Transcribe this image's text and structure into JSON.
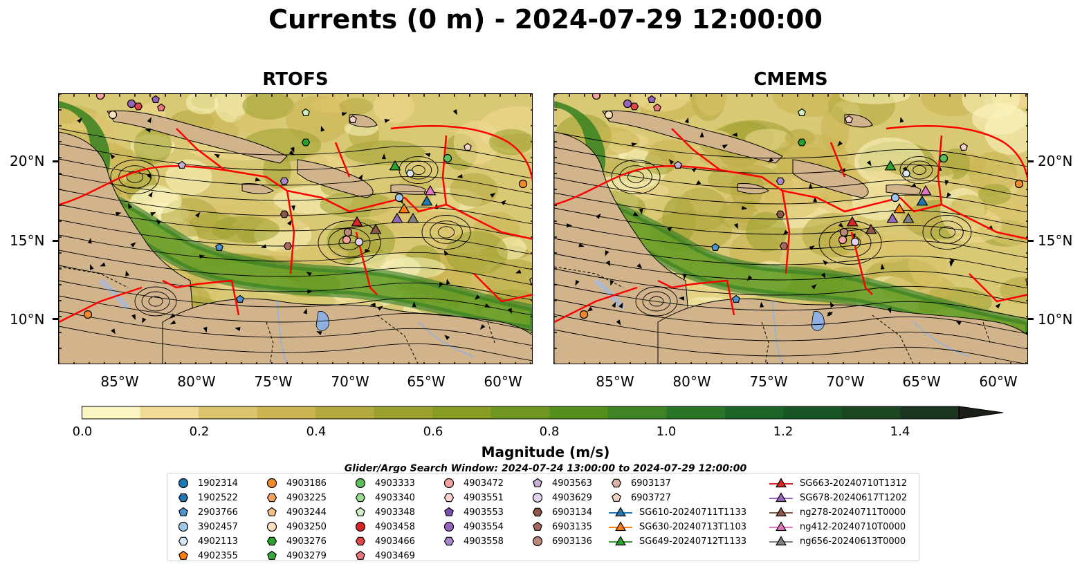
{
  "title": "Currents (0 m) - 2024-07-29 12:00:00",
  "panels": [
    {
      "title": "RTOFS"
    },
    {
      "title": "CMEMS"
    }
  ],
  "axes": {
    "y_ticks": [
      "20°N",
      "15°N",
      "10°N"
    ],
    "x_ticks": [
      "85°W",
      "80°W",
      "75°W",
      "70°W",
      "65°W",
      "60°W"
    ]
  },
  "colorbar": {
    "label": "Magnitude (m/s)",
    "ticks": [
      "0.0",
      "0.2",
      "0.4",
      "0.6",
      "0.8",
      "1.0",
      "1.2",
      "1.4"
    ],
    "colors": [
      "#fbf5c1",
      "#efdb94",
      "#dcc46e",
      "#cbb552",
      "#b3a83e",
      "#9da02f",
      "#869c23",
      "#6f9620",
      "#55901f",
      "#3f8424",
      "#2a7528",
      "#1d6428",
      "#175624",
      "#1a4621",
      "#1c3520",
      "#1a261b"
    ]
  },
  "map_colors": {
    "land": "#d2b48c",
    "water_features": "#8fb0e0",
    "boundaries": "#ff0000",
    "streamlines": "#000000"
  },
  "search_window": "Glider/Argo Search Window: 2024-07-24 13:00:00 to 2024-07-29 12:00:00",
  "legend": {
    "columns": [
      [
        {
          "label": "1902314",
          "marker": "circle",
          "color": "#1f77b4"
        },
        {
          "label": "1902522",
          "marker": "hexagon",
          "color": "#1f77b4"
        },
        {
          "label": "2903766",
          "marker": "pentagon",
          "color": "#4e95cf"
        },
        {
          "label": "3902457",
          "marker": "circle",
          "color": "#9fc8eb"
        },
        {
          "label": "4902113",
          "marker": "hexagon",
          "color": "#d9eaf8"
        },
        {
          "label": "4902355",
          "marker": "pentagon",
          "color": "#ff7f0e"
        }
      ],
      [
        {
          "label": "4903186",
          "marker": "circle",
          "color": "#f08a2b"
        },
        {
          "label": "4903225",
          "marker": "hexagon",
          "color": "#f6a25a"
        },
        {
          "label": "4903244",
          "marker": "pentagon",
          "color": "#f9bf8b"
        },
        {
          "label": "4903250",
          "marker": "circle",
          "color": "#fde0c0"
        },
        {
          "label": "4903276",
          "marker": "hexagon",
          "color": "#2ca02c"
        },
        {
          "label": "4903279",
          "marker": "pentagon",
          "color": "#3aa83a"
        }
      ],
      [
        {
          "label": "4903333",
          "marker": "circle",
          "color": "#5cbf5c"
        },
        {
          "label": "4903340",
          "marker": "hexagon",
          "color": "#98df8a"
        },
        {
          "label": "4903348",
          "marker": "pentagon",
          "color": "#cff0c6"
        },
        {
          "label": "4903458",
          "marker": "circle",
          "color": "#d62728"
        },
        {
          "label": "4903466",
          "marker": "hexagon",
          "color": "#e0484a"
        },
        {
          "label": "4903469",
          "marker": "pentagon",
          "color": "#ec7778"
        }
      ],
      [
        {
          "label": "4903472",
          "marker": "circle",
          "color": "#f4a3a2"
        },
        {
          "label": "4903551",
          "marker": "hexagon",
          "color": "#fbd0cf"
        },
        {
          "label": "4903553",
          "marker": "pentagon",
          "color": "#7b4fb0"
        },
        {
          "label": "4903554",
          "marker": "circle",
          "color": "#9467bd"
        },
        {
          "label": "4903558",
          "marker": "hexagon",
          "color": "#a988d0"
        }
      ],
      [
        {
          "label": "4903563",
          "marker": "pentagon",
          "color": "#c5b0d5"
        },
        {
          "label": "4903629",
          "marker": "circle",
          "color": "#e1d3ee"
        },
        {
          "label": "6903134",
          "marker": "hexagon",
          "color": "#8c564b"
        },
        {
          "label": "6903135",
          "marker": "pentagon",
          "color": "#a36a5e"
        },
        {
          "label": "6903136",
          "marker": "circle",
          "color": "#bb8879"
        }
      ],
      [
        {
          "label": "6903137",
          "marker": "hexagon",
          "color": "#dcb0a3"
        },
        {
          "label": "6903727",
          "marker": "pentagon",
          "color": "#f6d2c6"
        },
        {
          "label": "SG610-20240711T1133",
          "marker": "triangle-line",
          "color": "#1f77b4"
        },
        {
          "label": "SG630-20240713T1103",
          "marker": "triangle-line",
          "color": "#ff7f0e"
        },
        {
          "label": "SG649-20240712T1133",
          "marker": "triangle-line",
          "color": "#2ca02c"
        }
      ],
      [
        {
          "label": "SG663-20240710T1312",
          "marker": "triangle-line",
          "color": "#d62728"
        },
        {
          "label": "SG678-20240617T1202",
          "marker": "triangle-line",
          "color": "#9467bd"
        },
        {
          "label": "ng278-20240711T0000",
          "marker": "triangle-line",
          "color": "#8c564b"
        },
        {
          "label": "ng412-20240710T0000",
          "marker": "triangle-line",
          "color": "#e377c2"
        },
        {
          "label": "ng656-20240613T0000",
          "marker": "triangle-line",
          "color": "#7f7f7f"
        }
      ]
    ]
  }
}
